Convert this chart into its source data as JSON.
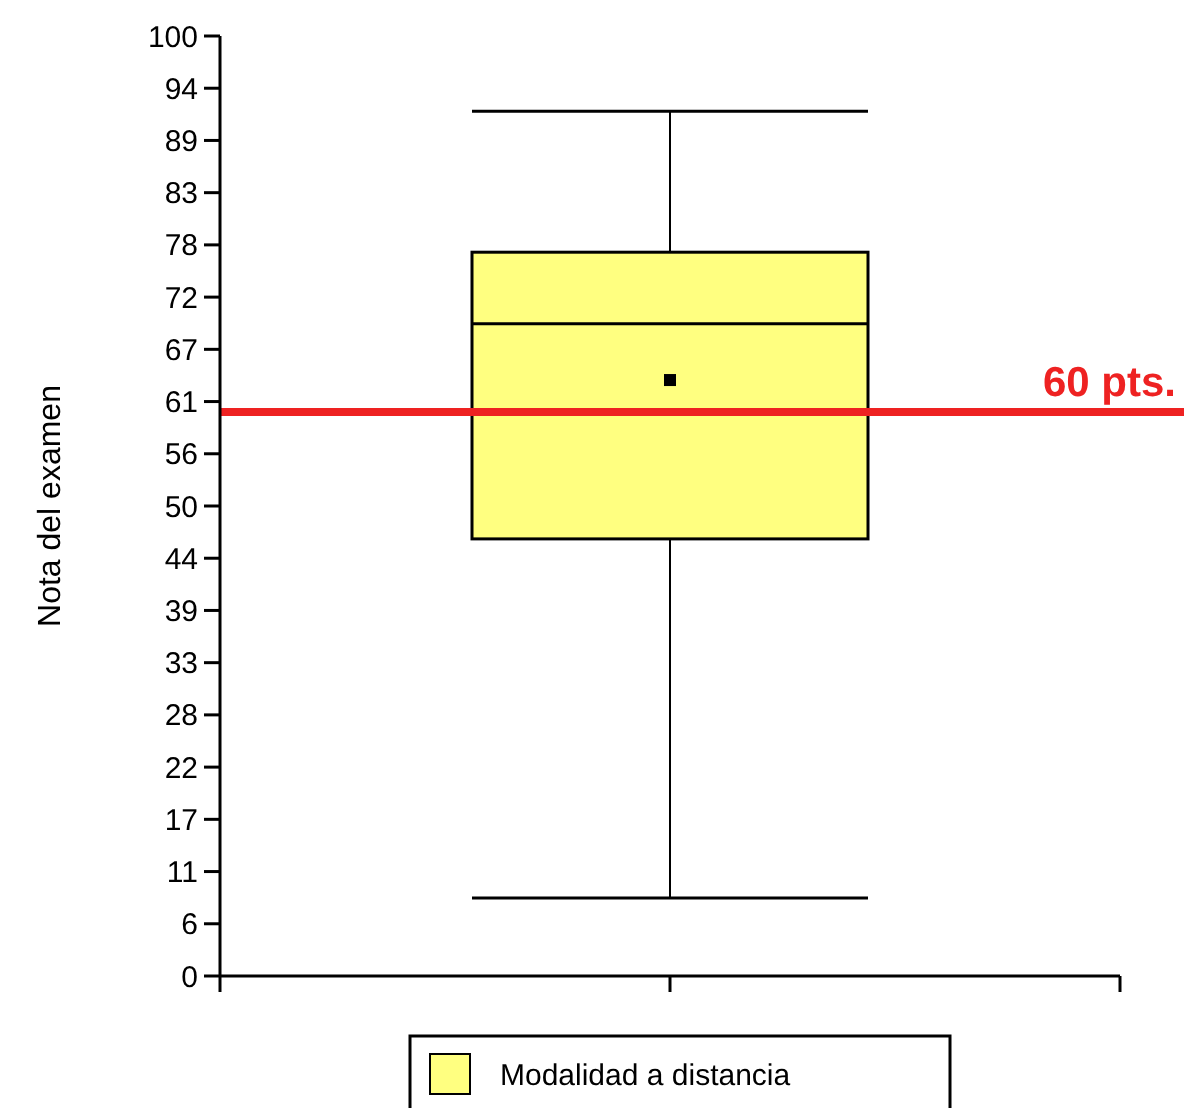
{
  "chart_data": {
    "type": "box",
    "ylabel": "Nota del examen",
    "categories": [
      null
    ],
    "series": [
      {
        "name": "Modalidad a distancia",
        "color": "#ffff80",
        "boxes": [
          {
            "low": 8.3,
            "q1": 46.5,
            "median": 69.4,
            "q3": 77,
            "high": 92,
            "mean": 63.4
          }
        ]
      }
    ],
    "ylim": [
      0,
      100
    ],
    "yticks": [
      0,
      {
        "value": 5.556,
        "label": "6"
      },
      {
        "value": 11.111,
        "label": "11"
      },
      {
        "value": 16.667,
        "label": "17"
      },
      {
        "value": 22.222,
        "label": "22"
      },
      {
        "value": 27.778,
        "label": "28"
      },
      {
        "value": 33.333,
        "label": "33"
      },
      {
        "value": 38.889,
        "label": "39"
      },
      {
        "value": 44.444,
        "label": "44"
      },
      50,
      {
        "value": 55.556,
        "label": "56"
      },
      {
        "value": 61.111,
        "label": "61"
      },
      {
        "value": 66.667,
        "label": "67"
      },
      {
        "value": 72.222,
        "label": "72"
      },
      {
        "value": 77.778,
        "label": "78"
      },
      {
        "value": 83.333,
        "label": "83"
      },
      {
        "value": 88.889,
        "label": "89"
      },
      {
        "value": 94.444,
        "label": "94"
      },
      100
    ],
    "ref_lines": [
      {
        "axis": "y",
        "value": 60,
        "label": "60 pts.",
        "color": "#ee2222"
      }
    ],
    "legend": "bottom",
    "grid": false,
    "marker": "square"
  }
}
